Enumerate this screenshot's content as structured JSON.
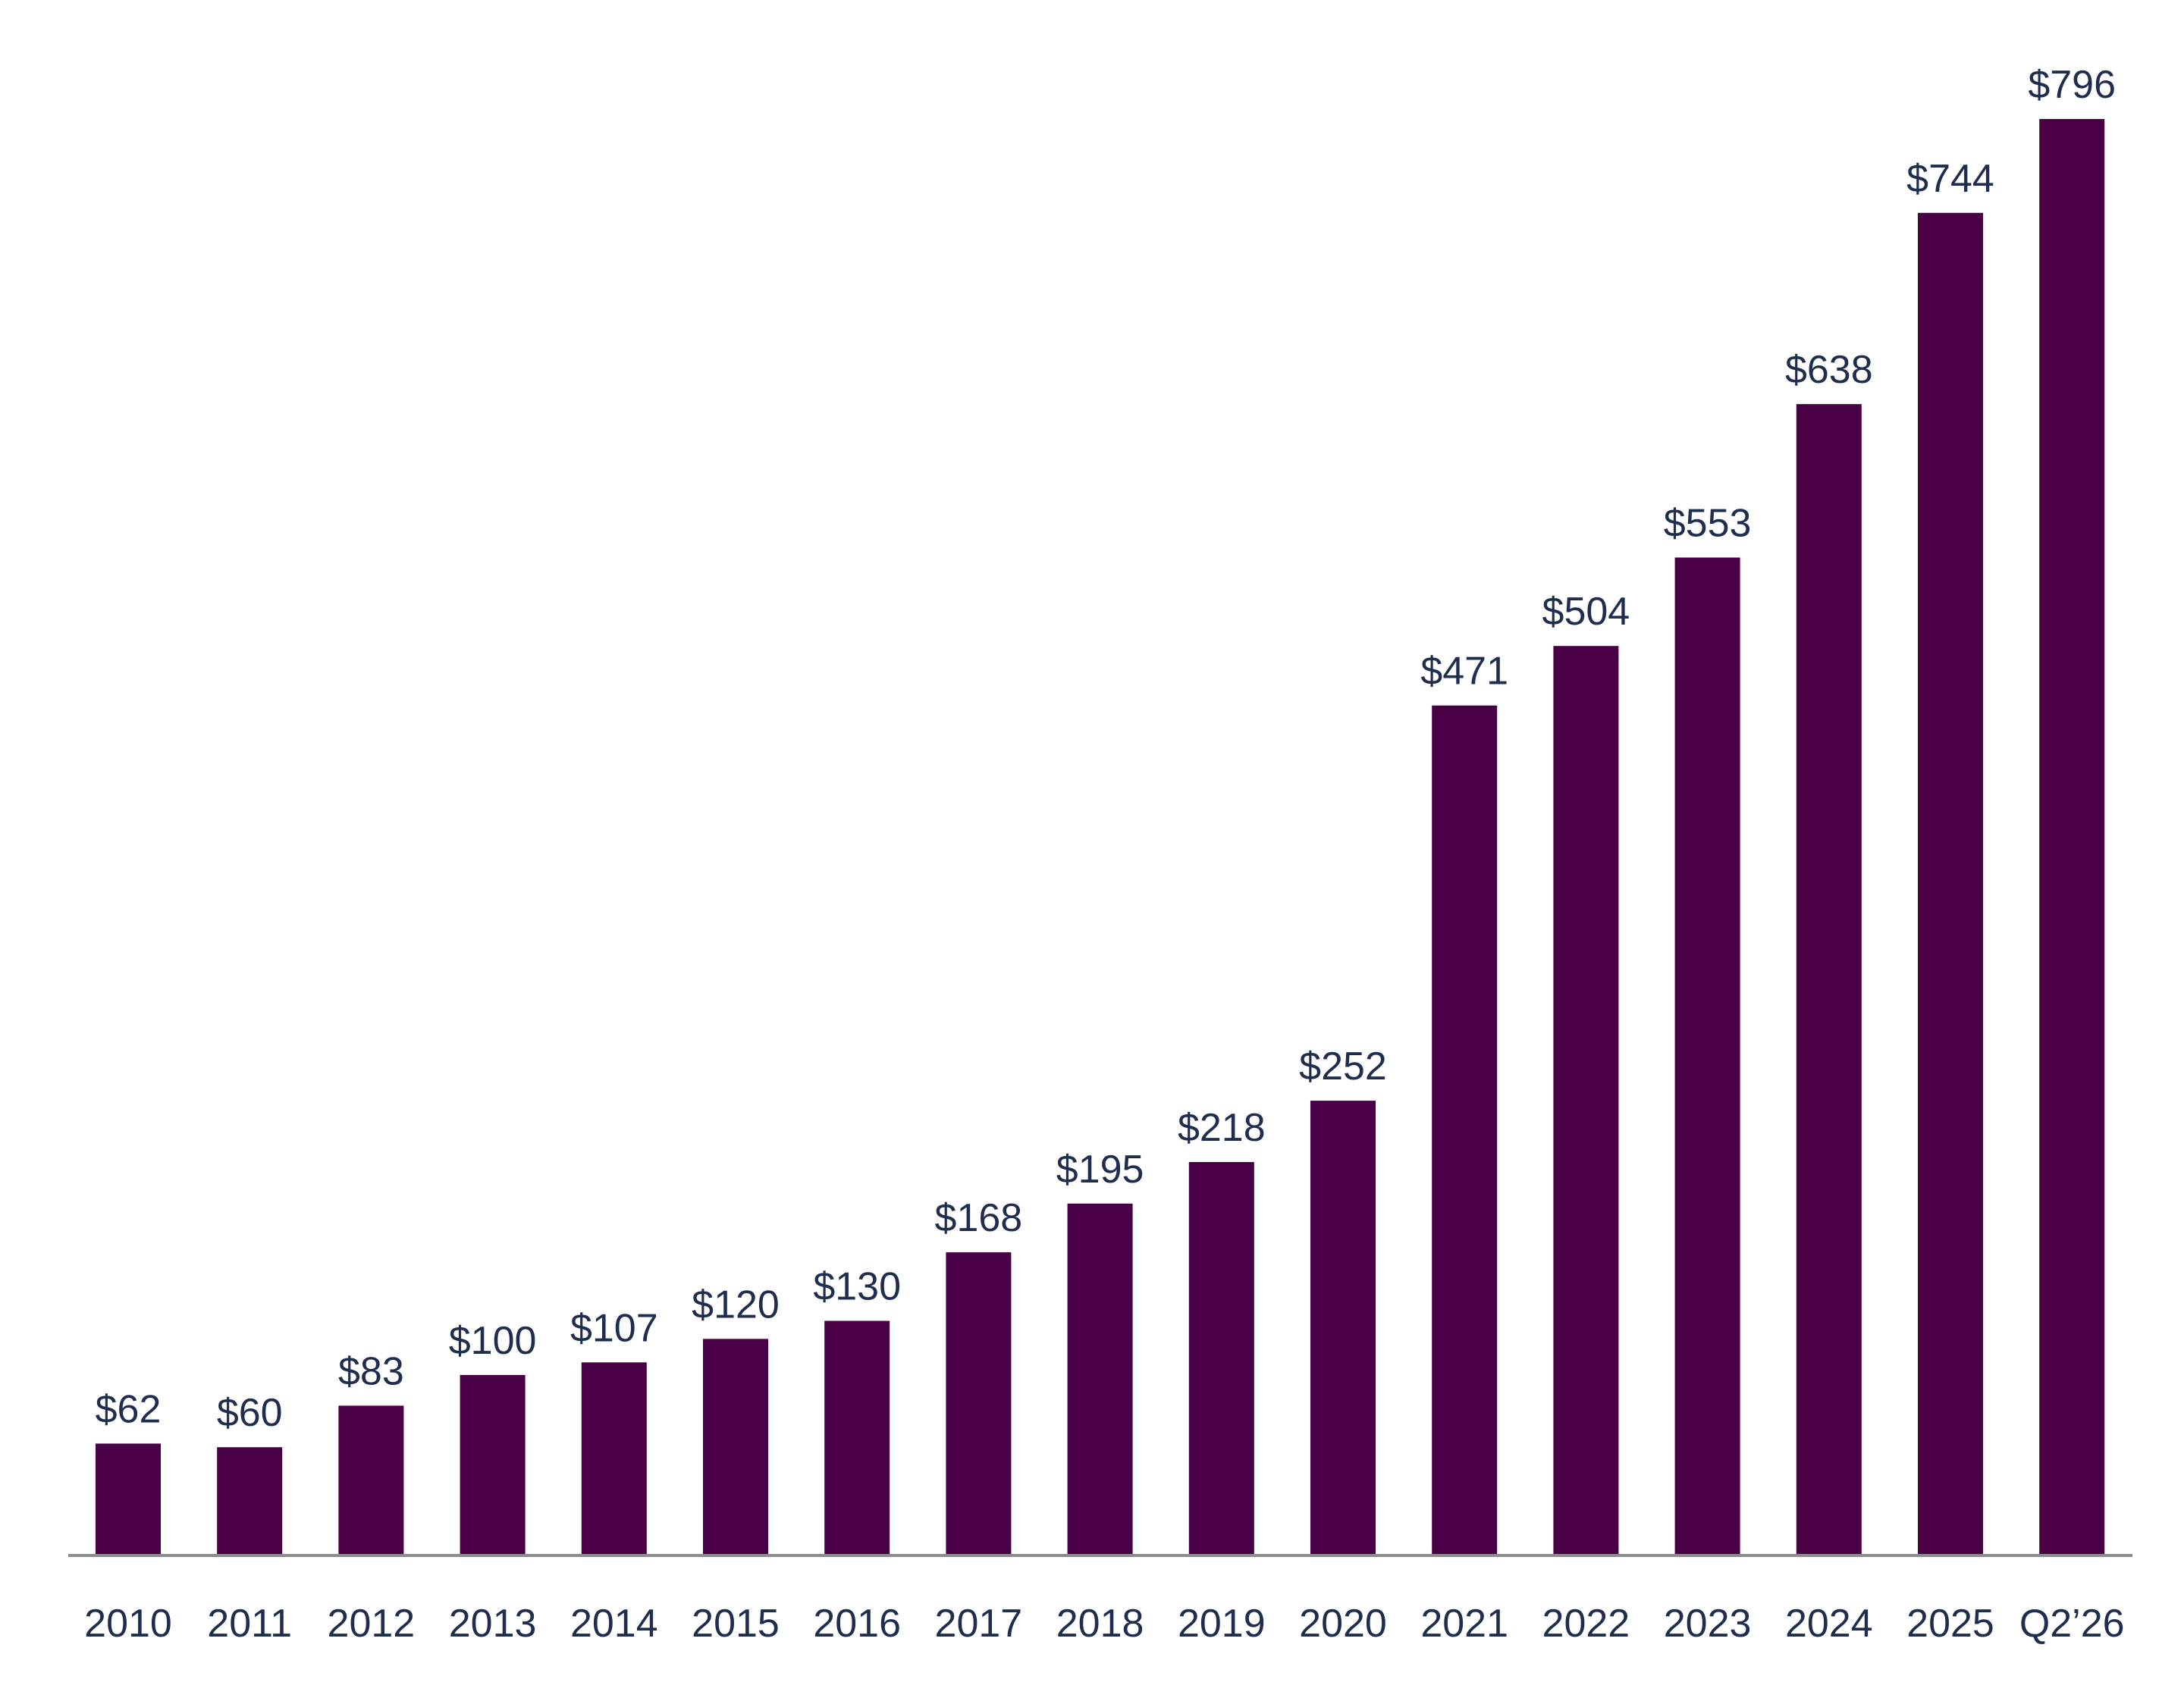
{
  "chart_data": {
    "type": "bar",
    "title": "",
    "xlabel": "",
    "ylabel": "",
    "categories": [
      "2010",
      "2011",
      "2012",
      "2013",
      "2014",
      "2015",
      "2016",
      "2017",
      "2018",
      "2019",
      "2020",
      "2021",
      "2022",
      "2023",
      "2024",
      "2025",
      "Q2’26"
    ],
    "values": [
      62,
      60,
      83,
      100,
      107,
      120,
      130,
      168,
      195,
      218,
      252,
      471,
      504,
      553,
      638,
      744,
      796
    ],
    "data_labels": [
      "$62",
      "$60",
      "$83",
      "$100",
      "$107",
      "$120",
      "$130",
      "$168",
      "$195",
      "$218",
      "$252",
      "$471",
      "$504",
      "$553",
      "$638",
      "$744",
      "$796"
    ],
    "ylim": [
      0,
      796
    ],
    "grid": false,
    "legend": "none",
    "colors": {
      "bar": "#4a0044",
      "axis": "#8c8c8c",
      "text": "#1f2d4e"
    }
  }
}
